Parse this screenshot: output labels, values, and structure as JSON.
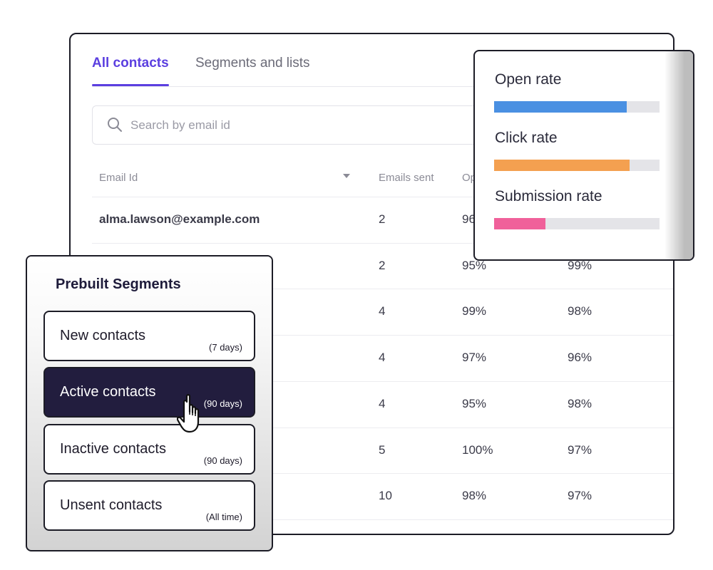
{
  "tabs": [
    {
      "label": "All contacts",
      "active": true
    },
    {
      "label": "Segments and lists",
      "active": false
    }
  ],
  "search": {
    "placeholder": "Search by email id"
  },
  "table": {
    "headers": [
      "Email Id",
      "Emails sent",
      "Op"
    ],
    "rows": [
      {
        "email": "alma.lawson@example.com",
        "emails_sent": "2",
        "open_rate": "96",
        "click_rate": ""
      },
      {
        "email": "",
        "emails_sent": "2",
        "open_rate": "95%",
        "click_rate": "99%"
      },
      {
        "email": "",
        "emails_sent": "4",
        "open_rate": "99%",
        "click_rate": "98%"
      },
      {
        "email": "",
        "emails_sent": "4",
        "open_rate": "97%",
        "click_rate": "96%"
      },
      {
        "email": "",
        "emails_sent": "4",
        "open_rate": "95%",
        "click_rate": "98%"
      },
      {
        "email": "",
        "emails_sent": "5",
        "open_rate": "100%",
        "click_rate": "97%"
      },
      {
        "email": "",
        "emails_sent": "10",
        "open_rate": "98%",
        "click_rate": "97%"
      }
    ]
  },
  "rates": [
    {
      "label": "Open rate",
      "value": 0.8,
      "color": "#4a90e2"
    },
    {
      "label": "Click rate",
      "value": 0.82,
      "color": "#f4a050"
    },
    {
      "label": "Submission rate",
      "value": 0.31,
      "color": "#f0609a"
    }
  ],
  "segments": {
    "title": "Prebuilt Segments",
    "items": [
      {
        "name": "New contacts",
        "period": "(7 days)",
        "active": false
      },
      {
        "name": "Active contacts",
        "period": "(90 days)",
        "active": true
      },
      {
        "name": "Inactive contacts",
        "period": "(90 days)",
        "active": false
      },
      {
        "name": "Unsent contacts",
        "period": "(All time)",
        "active": false
      }
    ]
  },
  "colors": {
    "accent": "#5b3fe0",
    "segment_active": "#221d3e"
  },
  "icons": [
    "search-icon",
    "sort-caret-icon",
    "hand-pointer-icon"
  ]
}
